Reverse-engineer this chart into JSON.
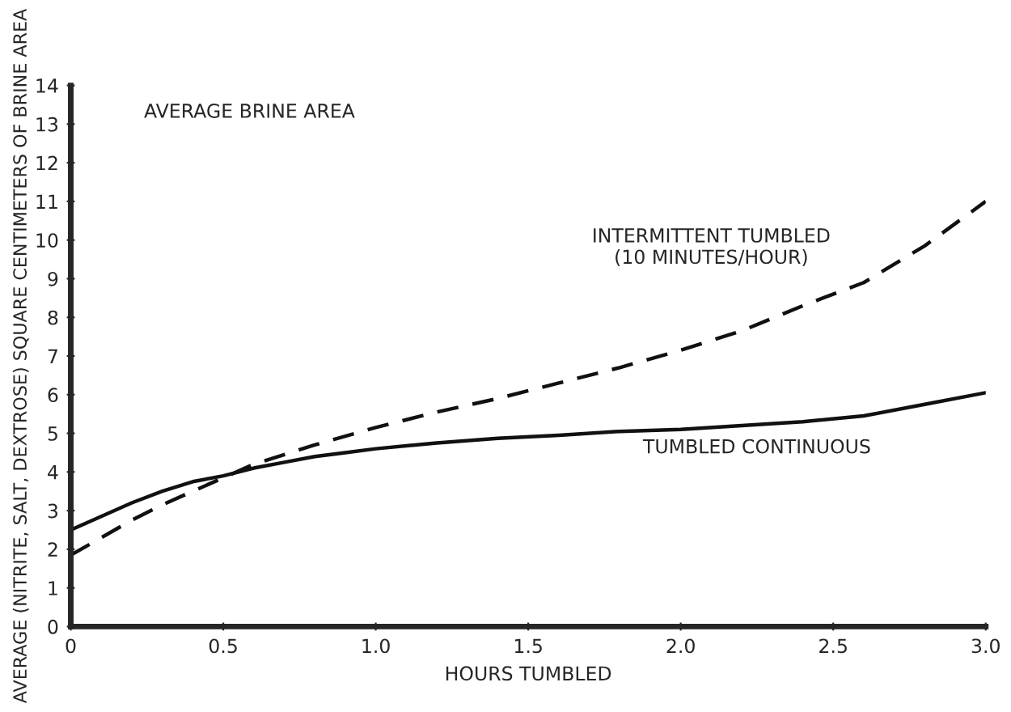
{
  "chart_data": {
    "type": "line",
    "title": "AVERAGE BRINE AREA",
    "xlabel": "HOURS TUMBLED",
    "ylabel": "AVERAGE (NITRITE, SALT, DEXTROSE) SQUARE CENTIMETERS OF BRINE AREA",
    "xlim": [
      0,
      3.0
    ],
    "ylim": [
      0,
      14
    ],
    "xticks": [
      0,
      {
        "value": 0.5,
        "label": "0.5"
      },
      {
        "value": 1.0,
        "label": "1.0"
      },
      {
        "value": 1.5,
        "label": "1.5"
      },
      {
        "value": 2.0,
        "label": "2.0"
      },
      {
        "value": 2.5,
        "label": "2.5"
      },
      {
        "value": 3.0,
        "label": "3.0"
      }
    ],
    "yticks": [
      0,
      1,
      2,
      3,
      4,
      5,
      6,
      7,
      8,
      9,
      10,
      11,
      12,
      13,
      14
    ],
    "grid": false,
    "legend": false,
    "series": [
      {
        "name": "INTERMITTENT TUMBLED\n(10 MINUTES/HOUR)",
        "color": "#111111",
        "line_style": "dashed",
        "x": [
          0,
          0.1,
          0.2,
          0.3,
          0.4,
          0.5,
          0.6,
          0.8,
          1.0,
          1.2,
          1.4,
          1.6,
          1.8,
          2.0,
          2.2,
          2.4,
          2.6,
          2.8,
          3.0
        ],
        "values": [
          1.85,
          2.3,
          2.75,
          3.15,
          3.5,
          3.85,
          4.2,
          4.7,
          5.15,
          5.55,
          5.9,
          6.3,
          6.7,
          7.15,
          7.65,
          8.3,
          8.9,
          9.85,
          11.0
        ]
      },
      {
        "name": "TUMBLED CONTINUOUS",
        "color": "#111111",
        "line_style": "solid",
        "x": [
          0,
          0.1,
          0.2,
          0.3,
          0.4,
          0.5,
          0.6,
          0.7,
          0.8,
          0.9,
          1.0,
          1.2,
          1.4,
          1.6,
          1.8,
          2.0,
          2.2,
          2.4,
          2.6,
          2.8,
          3.0
        ],
        "values": [
          2.5,
          2.85,
          3.2,
          3.5,
          3.75,
          3.9,
          4.1,
          4.25,
          4.4,
          4.5,
          4.6,
          4.75,
          4.87,
          4.95,
          5.05,
          5.1,
          5.2,
          5.3,
          5.45,
          5.75,
          6.05
        ]
      }
    ]
  }
}
